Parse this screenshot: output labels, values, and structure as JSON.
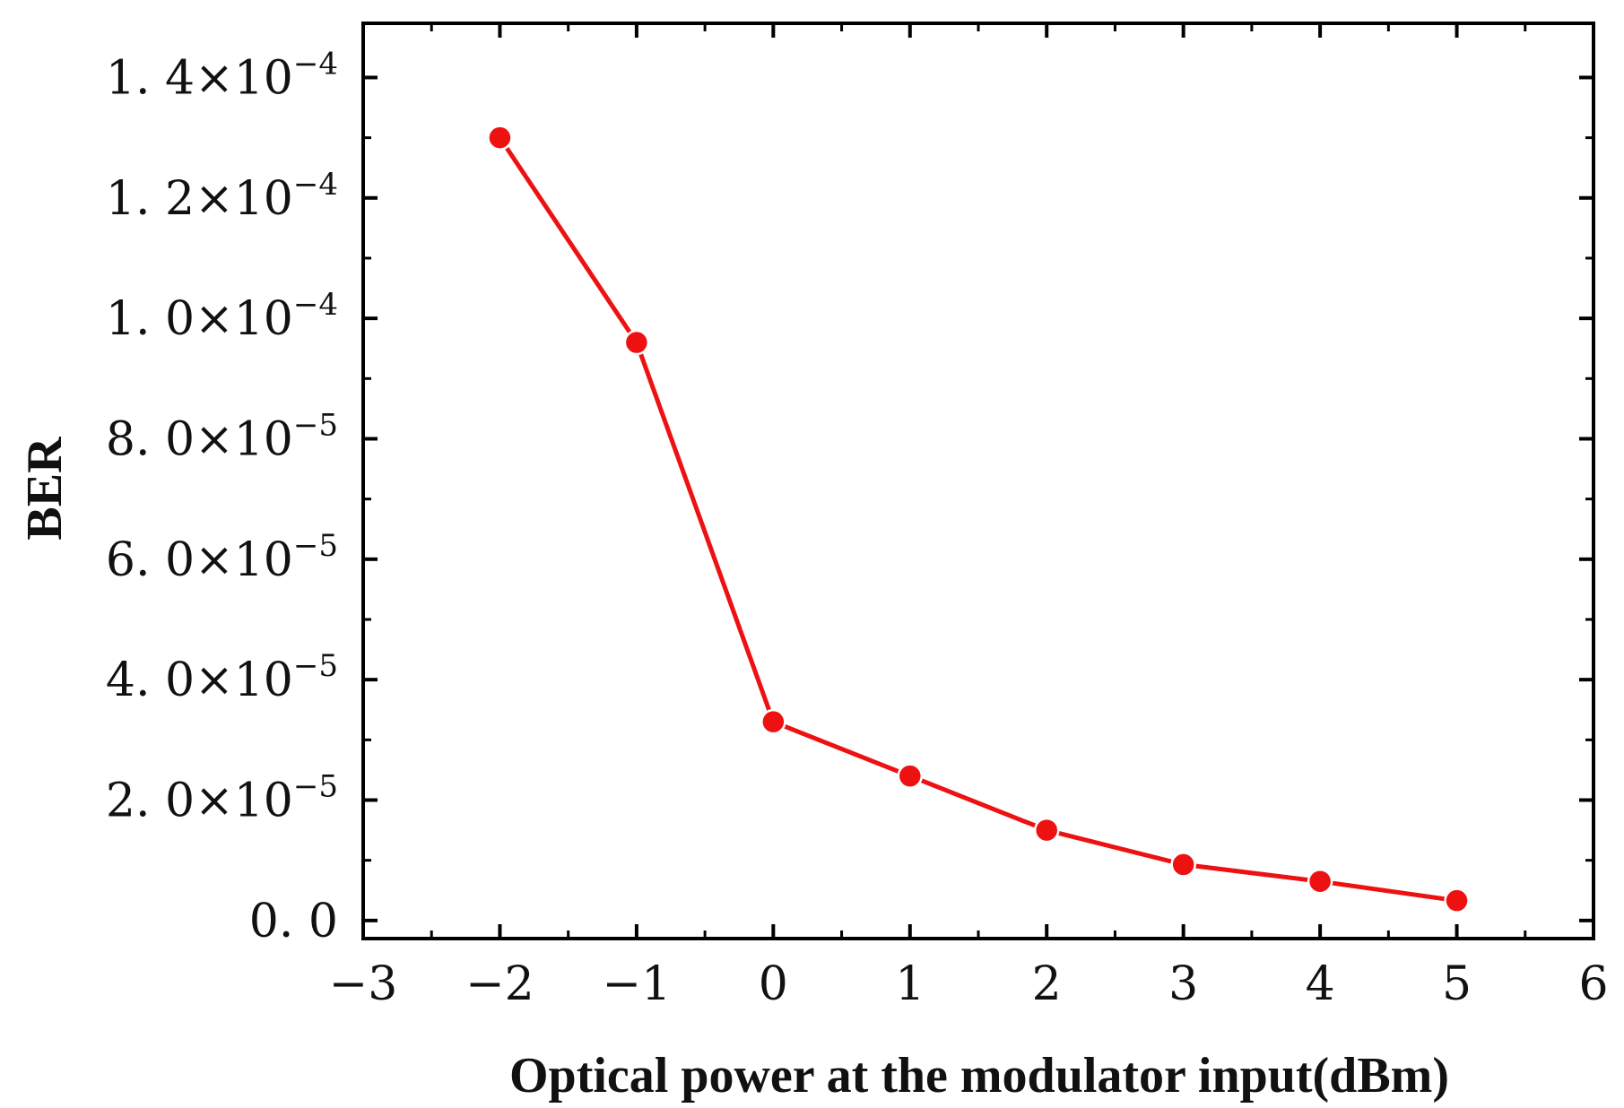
{
  "chart_data": {
    "type": "line",
    "title": "",
    "xlabel": "Optical power at the modulator input(dBm)",
    "ylabel": "BER",
    "xlim": [
      -3,
      6
    ],
    "ylim": [
      -3e-06,
      0.000149
    ],
    "grid": false,
    "legend": "none",
    "x_ticks": [
      -3,
      -2,
      -1,
      0,
      1,
      2,
      3,
      4,
      5,
      6
    ],
    "x_tick_labels": [
      "−3",
      "−2",
      "−1",
      "0",
      "1",
      "2",
      "3",
      "4",
      "5",
      "6"
    ],
    "y_ticks": [
      {
        "value": 0,
        "mantissa": "0. 0",
        "exponent": ""
      },
      {
        "value": 2e-05,
        "mantissa": "2. 0×10",
        "exponent": "−5"
      },
      {
        "value": 4e-05,
        "mantissa": "4. 0×10",
        "exponent": "−5"
      },
      {
        "value": 6e-05,
        "mantissa": "6. 0×10",
        "exponent": "−5"
      },
      {
        "value": 8e-05,
        "mantissa": "8. 0×10",
        "exponent": "−5"
      },
      {
        "value": 0.0001,
        "mantissa": "1. 0×10",
        "exponent": "−4"
      },
      {
        "value": 0.00012,
        "mantissa": "1. 2×10",
        "exponent": "−4"
      },
      {
        "value": 0.00014,
        "mantissa": "1. 4×10",
        "exponent": "−4"
      }
    ],
    "series": [
      {
        "name": "BER",
        "color": "#ee1111",
        "x": [
          -2,
          -1,
          0,
          1,
          2,
          3,
          4,
          5
        ],
        "y": [
          0.00013,
          9.6e-05,
          3.3e-05,
          2.4e-05,
          1.5e-05,
          9.3e-06,
          6.5e-06,
          3.3e-06
        ]
      }
    ]
  }
}
